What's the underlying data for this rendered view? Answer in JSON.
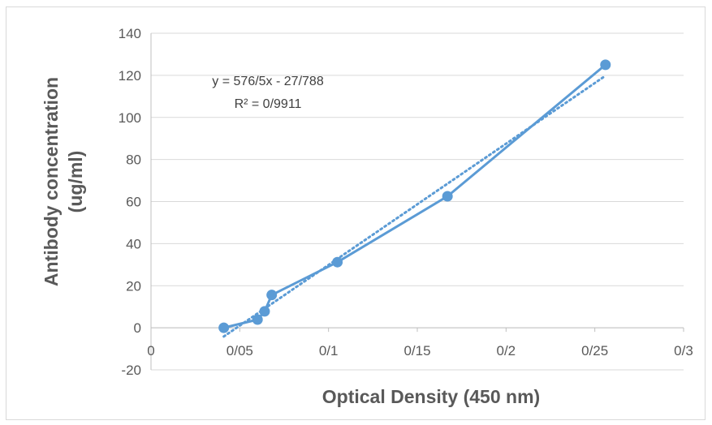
{
  "chart_data": {
    "type": "scatter",
    "title": "",
    "xlabel": "Optical Density (450 nm)",
    "ylabel_line1": "Antibody concentration",
    "ylabel_line2": "(ug/ml)",
    "xlim": [
      0,
      0.3
    ],
    "ylim": [
      -20,
      140
    ],
    "x_ticks": [
      0,
      0.05,
      0.1,
      0.15,
      0.2,
      0.25,
      0.3
    ],
    "x_tick_labels": [
      "0",
      "0/05",
      "0/1",
      "0/15",
      "0/2",
      "0/25",
      "0/3"
    ],
    "y_ticks": [
      -20,
      0,
      20,
      40,
      60,
      80,
      100,
      120,
      140
    ],
    "y_tick_labels": [
      "-20",
      "0",
      "20",
      "40",
      "60",
      "80",
      "100",
      "120",
      "140"
    ],
    "grid": "horizontal",
    "series": [
      {
        "x": [
          0.041,
          0.06,
          0.064,
          0.068,
          0.105,
          0.167,
          0.256
        ],
        "y": [
          0,
          3.9,
          7.8,
          15.6,
          31.2,
          62.5,
          125
        ],
        "color": "#5b9bd5",
        "style": "line+markers"
      }
    ],
    "trendline": {
      "type": "linear",
      "slope": 576.5,
      "intercept": -27.788,
      "x_range": [
        0.041,
        0.256
      ],
      "style": "dotted",
      "color": "#5b9bd5",
      "equation": "y = 576/5x - 27/788",
      "r_squared": "R² = 0/9911"
    }
  }
}
